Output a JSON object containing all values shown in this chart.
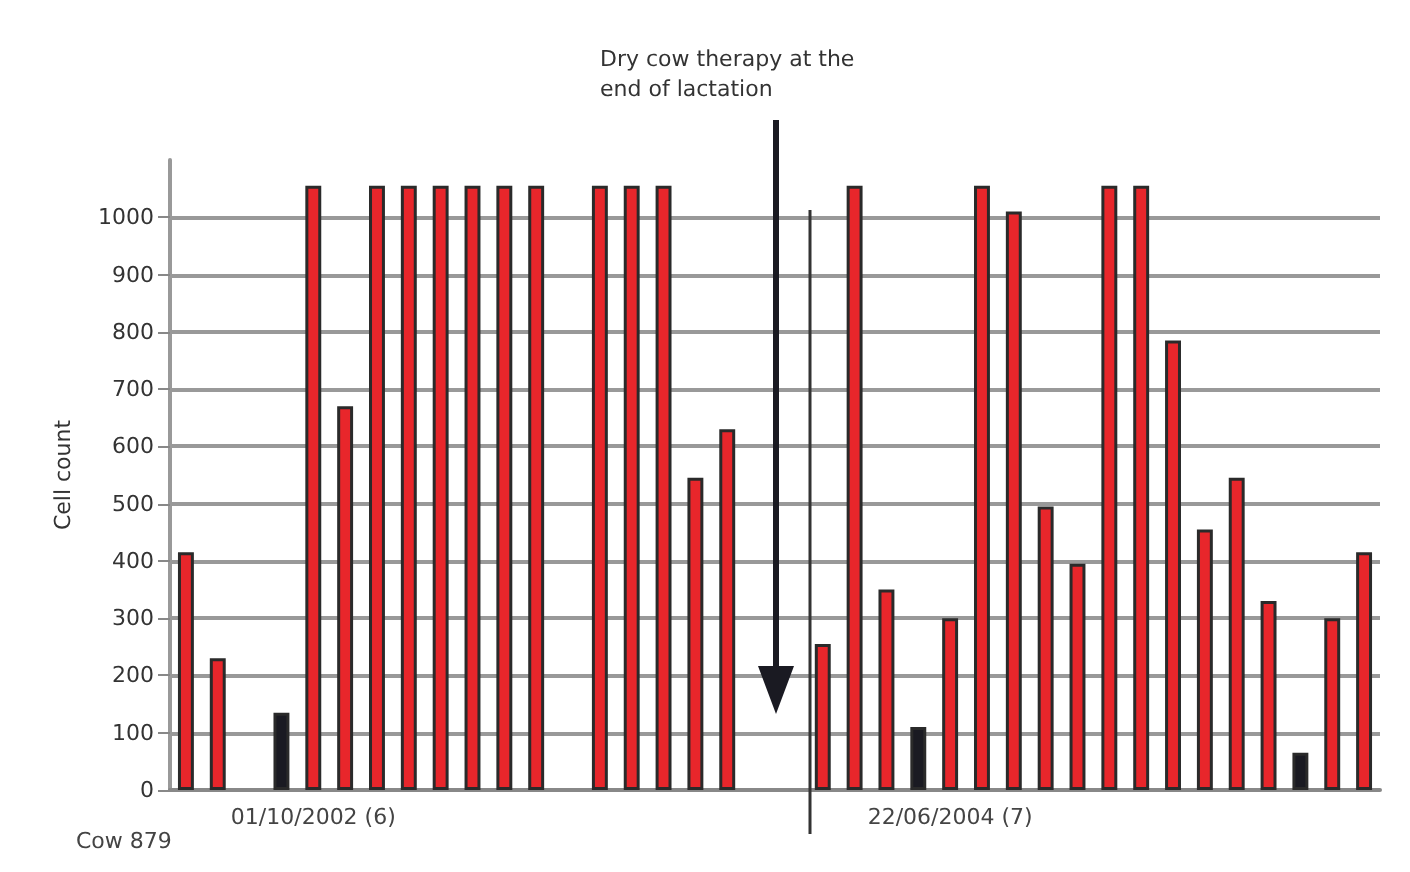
{
  "chart_data": {
    "type": "bar",
    "ylabel": "Cell count",
    "categories": [
      null,
      null,
      null,
      null,
      "01/10/2002 (6)",
      null,
      null,
      null,
      null,
      null,
      null,
      null,
      null,
      null,
      null,
      null,
      null,
      null,
      null,
      null,
      null,
      null,
      null,
      null,
      "22/06/2004 (7)",
      null,
      null,
      null,
      null,
      null,
      null,
      null,
      null,
      null,
      null,
      null,
      null,
      null
    ],
    "values": [
      415,
      230,
      null,
      135,
      1055,
      670,
      1055,
      1055,
      1055,
      1055,
      1055,
      1055,
      null,
      1055,
      1055,
      1055,
      545,
      630,
      null,
      null,
      255,
      1055,
      350,
      110,
      300,
      1055,
      1010,
      495,
      395,
      1055,
      1055,
      785,
      455,
      545,
      330,
      65,
      300,
      415
    ],
    "colors": [
      "#e8262b",
      "#e8262b",
      "#e8262b",
      "#1a1a22",
      "#e8262b",
      "#e8262b",
      "#e8262b",
      "#e8262b",
      "#e8262b",
      "#e8262b",
      "#e8262b",
      "#e8262b",
      "#e8262b",
      "#e8262b",
      "#e8262b",
      "#e8262b",
      "#e8262b",
      "#e8262b",
      "#e8262b",
      "#e8262b",
      "#e8262b",
      "#e8262b",
      "#e8262b",
      "#1a1a22",
      "#e8262b",
      "#e8262b",
      "#e8262b",
      "#e8262b",
      "#e8262b",
      "#e8262b",
      "#e8262b",
      "#e8262b",
      "#e8262b",
      "#e8262b",
      "#e8262b",
      "#1a1a22",
      "#e8262b",
      "#e8262b"
    ],
    "ylim": [
      0,
      1100
    ],
    "yticks": [
      0,
      100,
      200,
      300,
      400,
      500,
      600,
      700,
      800,
      900,
      1000
    ],
    "grid": "y",
    "annotations": [
      "Dry cow therapy at the end of lactation",
      "Cow 879"
    ]
  }
}
